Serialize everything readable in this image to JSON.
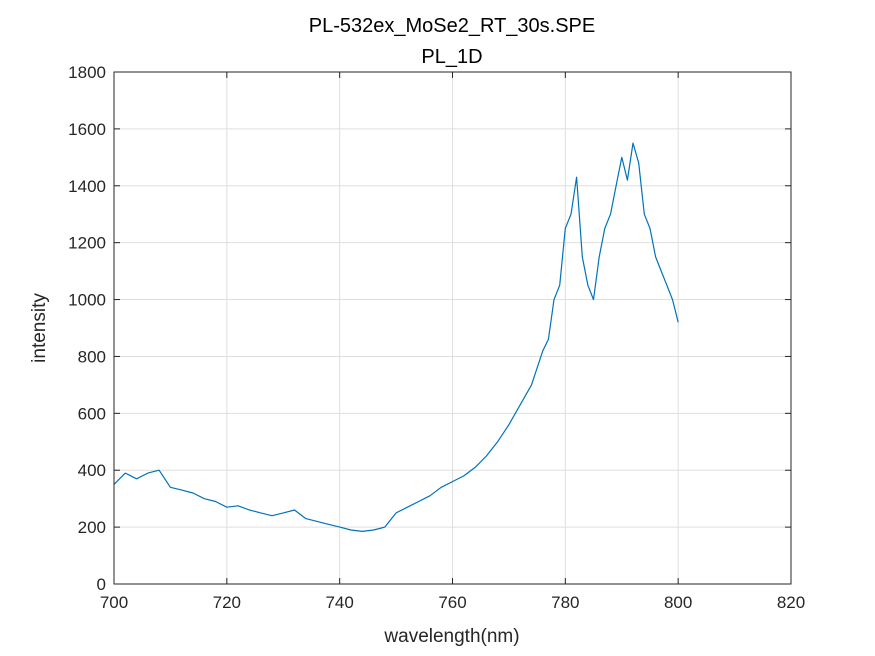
{
  "chart_data": {
    "type": "line",
    "title": "PL-532ex_MoSe2_RT_30s.SPE",
    "subtitle": "PL_1D",
    "xlabel": "wavelength(nm)",
    "ylabel": "intensity",
    "xlim": [
      700,
      820
    ],
    "ylim": [
      0,
      1800
    ],
    "xticks": [
      "700",
      "720",
      "740",
      "760",
      "780",
      "800",
      "820"
    ],
    "yticks": [
      "0",
      "200",
      "400",
      "600",
      "800",
      "1000",
      "1200",
      "1400",
      "1600",
      "1800"
    ],
    "grid": true,
    "line_color": "#0072bd",
    "series": [
      {
        "x": [
          700,
          702,
          704,
          706,
          708,
          710,
          712,
          714,
          716,
          718,
          720,
          722,
          724,
          726,
          728,
          730,
          732,
          734,
          736,
          738,
          740,
          742,
          744,
          746,
          748,
          750,
          752,
          754,
          756,
          758,
          760,
          762,
          764,
          766,
          768,
          770,
          772,
          774,
          776,
          777,
          778,
          779,
          780,
          781,
          782,
          783,
          784,
          785,
          786,
          787,
          788,
          789,
          790,
          791,
          792,
          793,
          794,
          795,
          796,
          797,
          798,
          799,
          800
        ],
        "values": [
          350,
          390,
          370,
          390,
          400,
          340,
          330,
          320,
          300,
          290,
          270,
          275,
          260,
          250,
          240,
          250,
          260,
          230,
          220,
          210,
          200,
          190,
          185,
          190,
          200,
          250,
          270,
          290,
          310,
          340,
          360,
          380,
          410,
          450,
          500,
          560,
          630,
          700,
          820,
          860,
          1000,
          1050,
          1250,
          1300,
          1430,
          1150,
          1050,
          1000,
          1150,
          1250,
          1300,
          1400,
          1500,
          1420,
          1550,
          1480,
          1300,
          1250,
          1150,
          1100,
          1050,
          1000,
          920
        ]
      }
    ]
  }
}
